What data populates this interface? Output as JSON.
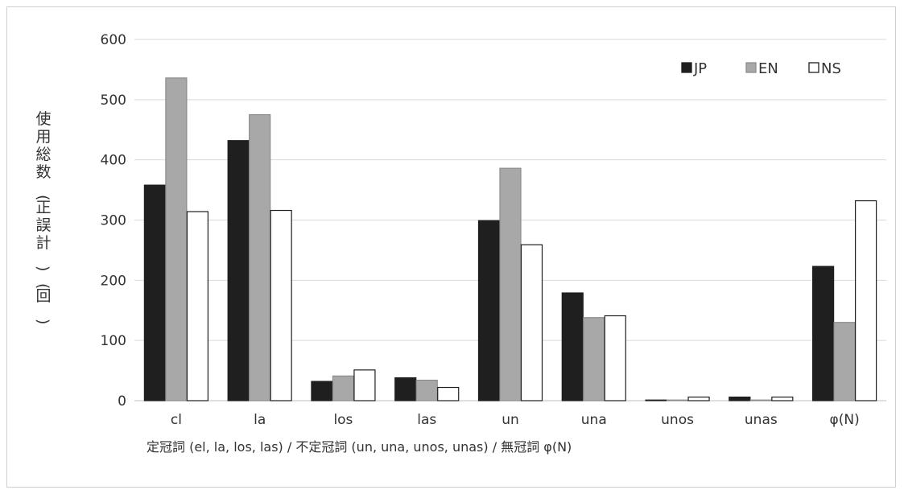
{
  "chart_data": {
    "type": "bar",
    "categories": [
      "cl",
      "la",
      "los",
      "las",
      "un",
      "una",
      "unos",
      "unas",
      "φ(N)"
    ],
    "series": [
      {
        "name": "JP",
        "color": "#1f1f1f",
        "stroke": "#1f1f1f",
        "values": [
          358,
          432,
          32,
          38,
          299,
          179,
          1,
          6,
          223
        ]
      },
      {
        "name": "EN",
        "color": "#a8a8a8",
        "stroke": "#8c8c8c",
        "values": [
          536,
          475,
          41,
          34,
          386,
          138,
          1,
          1,
          130
        ]
      },
      {
        "name": "NS",
        "color": "#ffffff",
        "stroke": "#1f1f1f",
        "values": [
          314,
          316,
          51,
          22,
          259,
          141,
          6,
          6,
          332
        ]
      }
    ],
    "ylim": [
      0,
      600
    ],
    "yticks": [
      0,
      100,
      200,
      300,
      400,
      500,
      600
    ],
    "ylabel": "使用総数(正誤計)(回)",
    "xlabel": "定冠詞 (el, la, los, las) / 不定冠詞 (un, una, unos, unas) / 無冠詞 φ(N)",
    "legend_position": "top-right",
    "grid": true,
    "grid_color": "#d9d9d9"
  }
}
